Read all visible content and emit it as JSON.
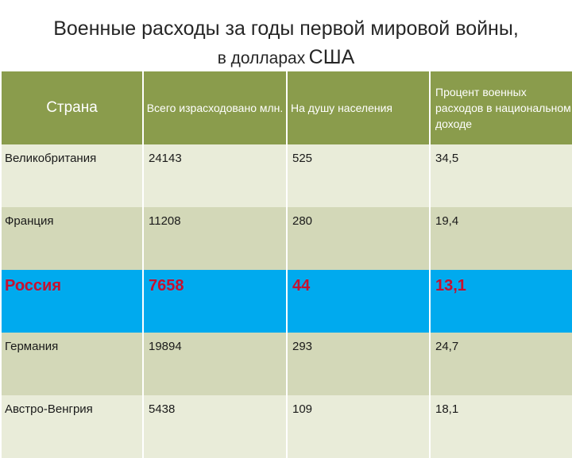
{
  "title": {
    "line1": "Военные расходы за годы первой мировой войны,",
    "line2_small": "в долларах",
    "line2_big": "США"
  },
  "table": {
    "headers": {
      "country": "Страна",
      "total": "Всего израсходовано млн.",
      "per_capita": "На душу населения",
      "percent": "Процент военных расходов в национальном доходе"
    },
    "rows": [
      {
        "country": "Великобритания",
        "total": "24143",
        "per_capita": "525",
        "percent": "34,5"
      },
      {
        "country": "Франция",
        "total": "11208",
        "per_capita": "280",
        "percent": "19,4"
      },
      {
        "country": "Россия",
        "total": "7658",
        "per_capita": "44",
        "percent": "13,1"
      },
      {
        "country": "Германия",
        "total": "19894",
        "per_capita": "293",
        "percent": "24,7"
      },
      {
        "country": "Австро-Венгрия",
        "total": "5438",
        "per_capita": "109",
        "percent": "18,1"
      }
    ]
  },
  "colors": {
    "header_bg": "#8a9c4c",
    "row_light": "#e9ecd9",
    "row_dark": "#d3d8b8",
    "highlight_bg": "#00aaee",
    "highlight_text": "#c8102e"
  }
}
